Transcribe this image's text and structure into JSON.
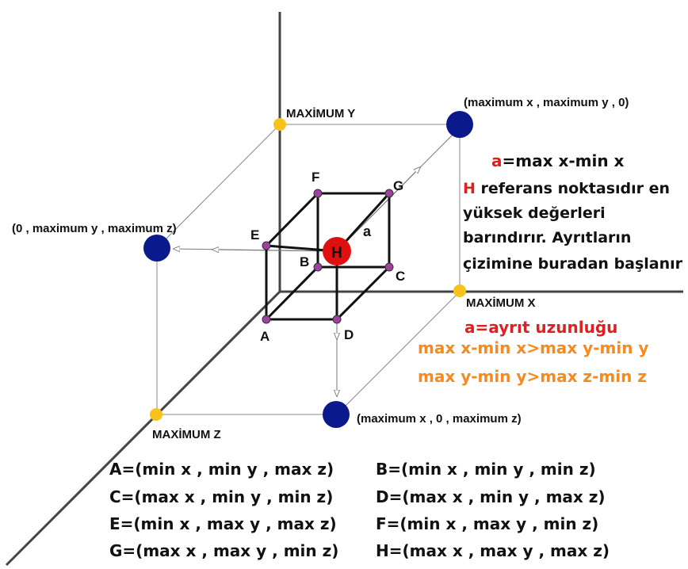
{
  "axis_labels": {
    "y": "MAXİMUM Y",
    "x": "MAXİMUM X",
    "z": "MAXİMUM Z"
  },
  "corner_labels": {
    "xy": "(maximum x , maximum y , 0)",
    "yz": "(0 , maximum y , maximum z)",
    "xz": "(maximum x , 0 , maximum z)"
  },
  "vertex_labels": {
    "A": "A",
    "B": "B",
    "C": "C",
    "D": "D",
    "E": "E",
    "F": "F",
    "G": "G",
    "H": "H",
    "edge": "a"
  },
  "notes": {
    "line1_prefix": "a",
    "line1_rest": "=max x-min x",
    "line2_prefix": "H",
    "line2_rest": " referans noktasıdır en",
    "line3": "yüksek değerleri",
    "line4": "barındırır. Ayrıtların",
    "line5": "çizimine buradan başlanır",
    "red_line": "a=ayrıt uzunluğu",
    "orange1": "max x-min x>max y-min y",
    "orange2": "max y-min y>max z-min z"
  },
  "definitions": [
    {
      "left": "A=(min x , min y , max z)",
      "right": "B=(min x , min y , min z)"
    },
    {
      "left": "C=(max x , min y , min z)",
      "right": "D=(max x , min y , max z)"
    },
    {
      "left": "E=(min x , max y , max z)",
      "right": "F=(min x , max y , min z)"
    },
    {
      "left": "G=(max x , max y , min z)",
      "right": "H=(max x , max y , max z)"
    }
  ],
  "colors": {
    "axis": "#444444",
    "box": "#111111",
    "vertex": "#a040a0",
    "corner_point": "#0a1a8c",
    "axis_point": "#f7c31a",
    "h_point": "#e01010",
    "red_text": "#e02020",
    "orange_text": "#f58a1f"
  }
}
